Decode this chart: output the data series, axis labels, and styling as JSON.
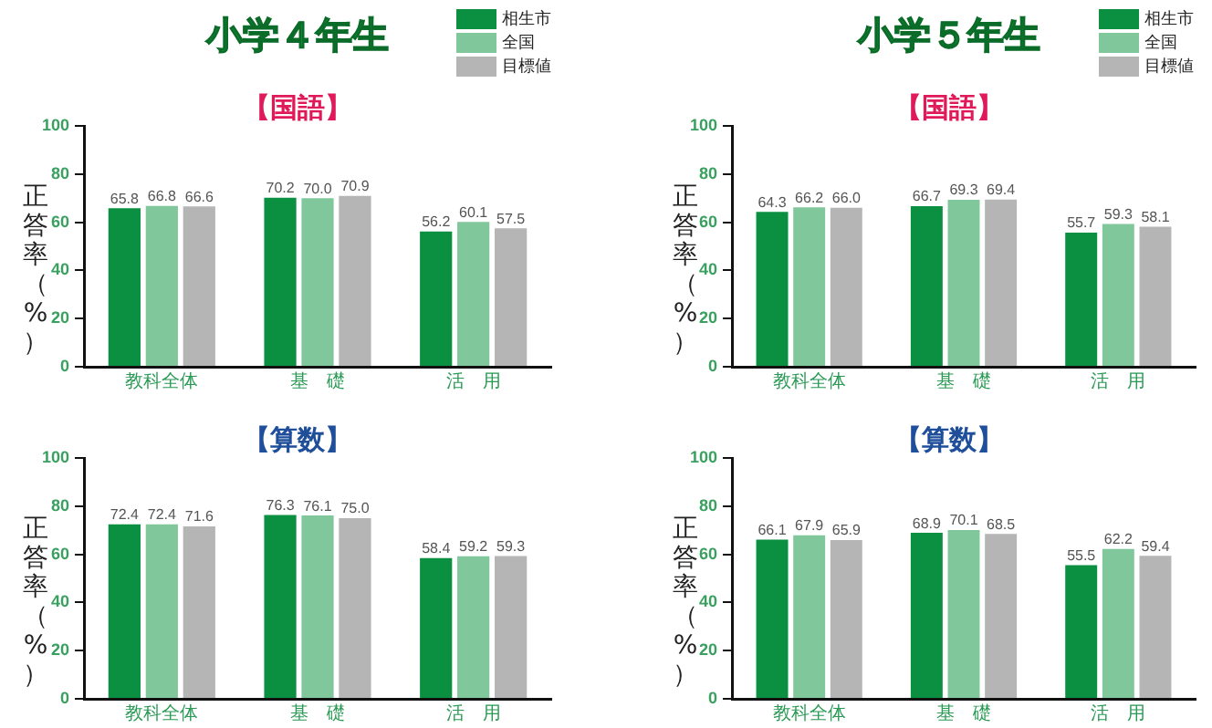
{
  "chart_data": [
    {
      "type": "bar",
      "title": "小学４年生",
      "subtitle": "【国語】",
      "ylabel": "正答率（%）",
      "categories": [
        "教科全体",
        "基　礎",
        "活　用"
      ],
      "ylim": [
        0,
        100
      ],
      "yticks": [
        0,
        20,
        40,
        60,
        80,
        100
      ],
      "legend": "top right",
      "series": [
        {
          "name": "相生市",
          "color": "#0a9040",
          "values": [
            65.8,
            70.2,
            56.2
          ],
          "value_labels": [
            "65.8",
            "70.2",
            "56.2"
          ]
        },
        {
          "name": "全国",
          "color": "#80c89c",
          "values": [
            66.8,
            70.0,
            60.1
          ],
          "value_labels": [
            "66.8",
            "70.0",
            "60.1"
          ]
        },
        {
          "name": "目標値",
          "color": "#b5b5b5",
          "values": [
            66.6,
            70.9,
            57.5
          ],
          "value_labels": [
            "66.6",
            "70.9",
            "57.5"
          ]
        }
      ]
    },
    {
      "type": "bar",
      "title": "小学５年生",
      "subtitle": "【国語】",
      "ylabel": "正答率（%）",
      "categories": [
        "教科全体",
        "基　礎",
        "活　用"
      ],
      "ylim": [
        0,
        100
      ],
      "yticks": [
        0,
        20,
        40,
        60,
        80,
        100
      ],
      "legend": "top right",
      "series": [
        {
          "name": "相生市",
          "color": "#0a9040",
          "values": [
            64.3,
            66.7,
            55.7
          ],
          "value_labels": [
            "64.3",
            "66.7",
            "55.7"
          ]
        },
        {
          "name": "全国",
          "color": "#80c89c",
          "values": [
            66.2,
            69.3,
            59.3
          ],
          "value_labels": [
            "66.2",
            "69.3",
            "59.3"
          ]
        },
        {
          "name": "目標値",
          "color": "#b5b5b5",
          "values": [
            66.0,
            69.4,
            58.1
          ],
          "value_labels": [
            "66.0",
            "69.4",
            "58.1"
          ]
        }
      ]
    },
    {
      "type": "bar",
      "title": "【算数】",
      "ylabel": "正答率（%）",
      "categories": [
        "教科全体",
        "基　礎",
        "活　用"
      ],
      "ylim": [
        0,
        100
      ],
      "yticks": [
        0,
        20,
        40,
        60,
        80,
        100
      ],
      "series": [
        {
          "color": "#0a9040",
          "values": [
            72.4,
            76.3,
            58.4
          ],
          "value_labels": [
            "72.4",
            "76.3",
            "58.4"
          ]
        },
        {
          "color": "#80c89c",
          "values": [
            72.4,
            76.1,
            59.2
          ],
          "value_labels": [
            "72.4",
            "76.1",
            "59.2"
          ]
        },
        {
          "color": "#b5b5b5",
          "values": [
            71.6,
            75.0,
            59.3
          ],
          "value_labels": [
            "71.6",
            "75.0",
            "59.3"
          ]
        }
      ]
    },
    {
      "type": "bar",
      "title": "【算数】",
      "ylabel": "正答率（%）",
      "categories": [
        "教科全体",
        "基　礎",
        "活　用"
      ],
      "ylim": [
        0,
        100
      ],
      "yticks": [
        0,
        20,
        40,
        60,
        80,
        100
      ],
      "series": [
        {
          "color": "#0a9040",
          "values": [
            66.1,
            68.9,
            55.5
          ],
          "value_labels": [
            "66.1",
            "68.9",
            "55.5"
          ]
        },
        {
          "color": "#80c89c",
          "values": [
            67.9,
            70.1,
            62.2
          ],
          "value_labels": [
            "67.9",
            "70.1",
            "62.2"
          ]
        },
        {
          "color": "#b5b5b5",
          "values": [
            65.9,
            68.5,
            59.4
          ],
          "value_labels": [
            "65.9",
            "68.5",
            "59.4"
          ]
        }
      ]
    }
  ]
}
